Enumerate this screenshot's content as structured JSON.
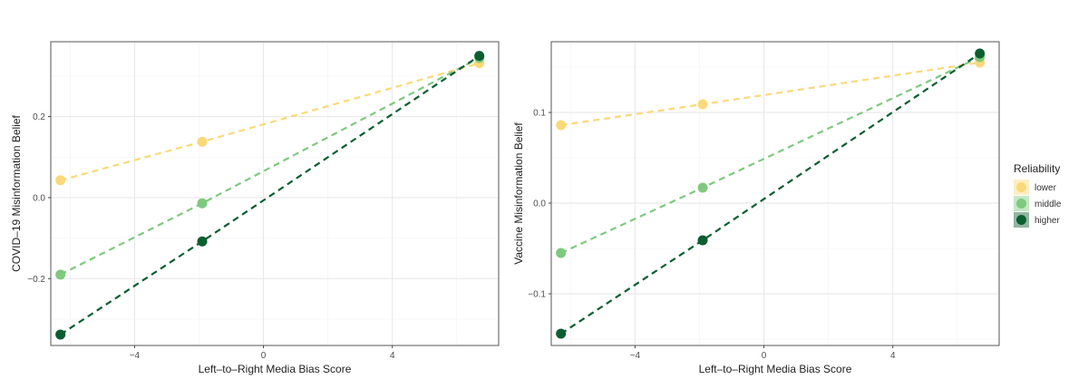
{
  "legend": {
    "title": "Reliability",
    "entries": [
      {
        "key": "lower",
        "label": "lower",
        "color": "#FAD97A"
      },
      {
        "key": "middle",
        "label": "middle",
        "color": "#7EC97E"
      },
      {
        "key": "higher",
        "label": "higher",
        "color": "#0B5E30"
      }
    ]
  },
  "chart_data": [
    {
      "type": "line",
      "title": "",
      "xlabel": "Left–to–Right Media Bias Score",
      "ylabel": "COVID–19 Misinformation Belief",
      "xlim": [
        -6.6,
        7.3
      ],
      "ylim": [
        -0.365,
        0.385
      ],
      "xticks": [
        -4,
        0,
        4
      ],
      "xtick_labels": [
        "−4",
        "0",
        "4"
      ],
      "yticks": [
        -0.2,
        0.0,
        0.2
      ],
      "ytick_labels": [
        "−0.2",
        "0.0",
        "0.2"
      ],
      "grid": true,
      "x": [
        -6.3,
        -1.9,
        6.7
      ],
      "series": [
        {
          "name": "lower",
          "values": [
            0.043,
            0.138,
            0.332
          ]
        },
        {
          "name": "middle",
          "values": [
            -0.19,
            -0.014,
            0.345
          ]
        },
        {
          "name": "higher",
          "values": [
            -0.338,
            -0.108,
            0.35
          ]
        }
      ]
    },
    {
      "type": "line",
      "title": "",
      "xlabel": "Left–to–Right Media Bias Score",
      "ylabel": "Vaccine Misinformation Belief",
      "xlim": [
        -6.6,
        7.3
      ],
      "ylim": [
        -0.157,
        0.178
      ],
      "xticks": [
        -4,
        0,
        4
      ],
      "xtick_labels": [
        "−4",
        "0",
        "4"
      ],
      "yticks": [
        -0.1,
        0.0,
        0.1
      ],
      "ytick_labels": [
        "−0.1",
        "0.0",
        "0.1"
      ],
      "grid": true,
      "x": [
        -6.3,
        -1.9,
        6.7
      ],
      "series": [
        {
          "name": "lower",
          "values": [
            0.086,
            0.109,
            0.155
          ]
        },
        {
          "name": "middle",
          "values": [
            -0.055,
            0.017,
            0.161
          ]
        },
        {
          "name": "higher",
          "values": [
            -0.144,
            -0.041,
            0.165
          ]
        }
      ]
    }
  ]
}
